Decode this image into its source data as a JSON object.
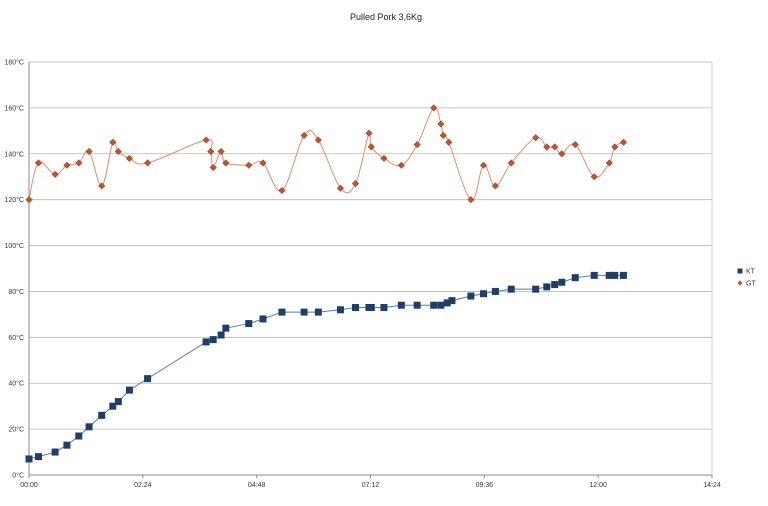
{
  "chart_data": {
    "type": "line",
    "title": "Pulled Pork 3,6Kg",
    "xlabel": "",
    "ylabel": "",
    "x_unit": "minutes",
    "xlim": [
      0,
      864
    ],
    "ylim": [
      0,
      180
    ],
    "x_ticks": [
      {
        "value": 0,
        "label": "00:00"
      },
      {
        "value": 144,
        "label": "02:24"
      },
      {
        "value": 288,
        "label": "04:48"
      },
      {
        "value": 432,
        "label": "07:12"
      },
      {
        "value": 576,
        "label": "09:36"
      },
      {
        "value": 720,
        "label": "12:00"
      },
      {
        "value": 864,
        "label": "14:24"
      }
    ],
    "y_ticks": [
      {
        "value": 0,
        "label": "0°C"
      },
      {
        "value": 20,
        "label": "20°C"
      },
      {
        "value": 40,
        "label": "40°C"
      },
      {
        "value": 60,
        "label": "60°C"
      },
      {
        "value": 80,
        "label": "80°C"
      },
      {
        "value": 100,
        "label": "100°C"
      },
      {
        "value": 120,
        "label": "120°C"
      },
      {
        "value": 140,
        "label": "140°C"
      },
      {
        "value": 160,
        "label": "160°C"
      },
      {
        "value": 180,
        "label": "180°C"
      }
    ],
    "grid": "horizontal",
    "legend_position": "right",
    "series": [
      {
        "name": "KT",
        "color": "#1f3f68",
        "marker": "square",
        "smooth": false,
        "points": [
          [
            0,
            7
          ],
          [
            12,
            8
          ],
          [
            33,
            10
          ],
          [
            48,
            13
          ],
          [
            63,
            17
          ],
          [
            76,
            21
          ],
          [
            92,
            26
          ],
          [
            106,
            30
          ],
          [
            113,
            32
          ],
          [
            127,
            37
          ],
          [
            150,
            42
          ],
          [
            224,
            58
          ],
          [
            233,
            59
          ],
          [
            243,
            61
          ],
          [
            249,
            64
          ],
          [
            278,
            66
          ],
          [
            296,
            68
          ],
          [
            320,
            71
          ],
          [
            348,
            71
          ],
          [
            366,
            71
          ],
          [
            394,
            72
          ],
          [
            413,
            73
          ],
          [
            430,
            73
          ],
          [
            433,
            73
          ],
          [
            449,
            73
          ],
          [
            471,
            74
          ],
          [
            491,
            74
          ],
          [
            512,
            74
          ],
          [
            521,
            74
          ],
          [
            529,
            75
          ],
          [
            535,
            76
          ],
          [
            559,
            78
          ],
          [
            575,
            79
          ],
          [
            590,
            80
          ],
          [
            610,
            81
          ],
          [
            641,
            81
          ],
          [
            655,
            82
          ],
          [
            665,
            83
          ],
          [
            674,
            84
          ],
          [
            691,
            86
          ],
          [
            715,
            87
          ],
          [
            734,
            87
          ],
          [
            741,
            87
          ],
          [
            752,
            87
          ]
        ]
      },
      {
        "name": "GT",
        "color": "#c8502a",
        "marker": "diamond",
        "smooth": true,
        "points": [
          [
            0,
            120
          ],
          [
            12,
            136
          ],
          [
            33,
            131
          ],
          [
            48,
            135
          ],
          [
            63,
            136
          ],
          [
            76,
            141
          ],
          [
            92,
            126
          ],
          [
            106,
            145
          ],
          [
            113,
            141
          ],
          [
            127,
            138
          ],
          [
            150,
            136
          ],
          [
            224,
            146
          ],
          [
            230,
            141
          ],
          [
            233,
            134
          ],
          [
            243,
            141
          ],
          [
            249,
            136
          ],
          [
            278,
            135
          ],
          [
            296,
            136
          ],
          [
            320,
            124
          ],
          [
            348,
            148
          ],
          [
            366,
            146
          ],
          [
            394,
            125
          ],
          [
            413,
            127
          ],
          [
            430,
            149
          ],
          [
            433,
            143
          ],
          [
            449,
            138
          ],
          [
            471,
            135
          ],
          [
            491,
            144
          ],
          [
            512,
            160
          ],
          [
            521,
            153
          ],
          [
            524,
            148
          ],
          [
            531,
            145
          ],
          [
            559,
            120
          ],
          [
            575,
            135
          ],
          [
            590,
            126
          ],
          [
            610,
            136
          ],
          [
            641,
            147
          ],
          [
            655,
            143
          ],
          [
            665,
            143
          ],
          [
            674,
            140
          ],
          [
            691,
            144
          ],
          [
            715,
            130
          ],
          [
            734,
            136
          ],
          [
            741,
            143
          ],
          [
            752,
            145
          ]
        ]
      }
    ]
  }
}
